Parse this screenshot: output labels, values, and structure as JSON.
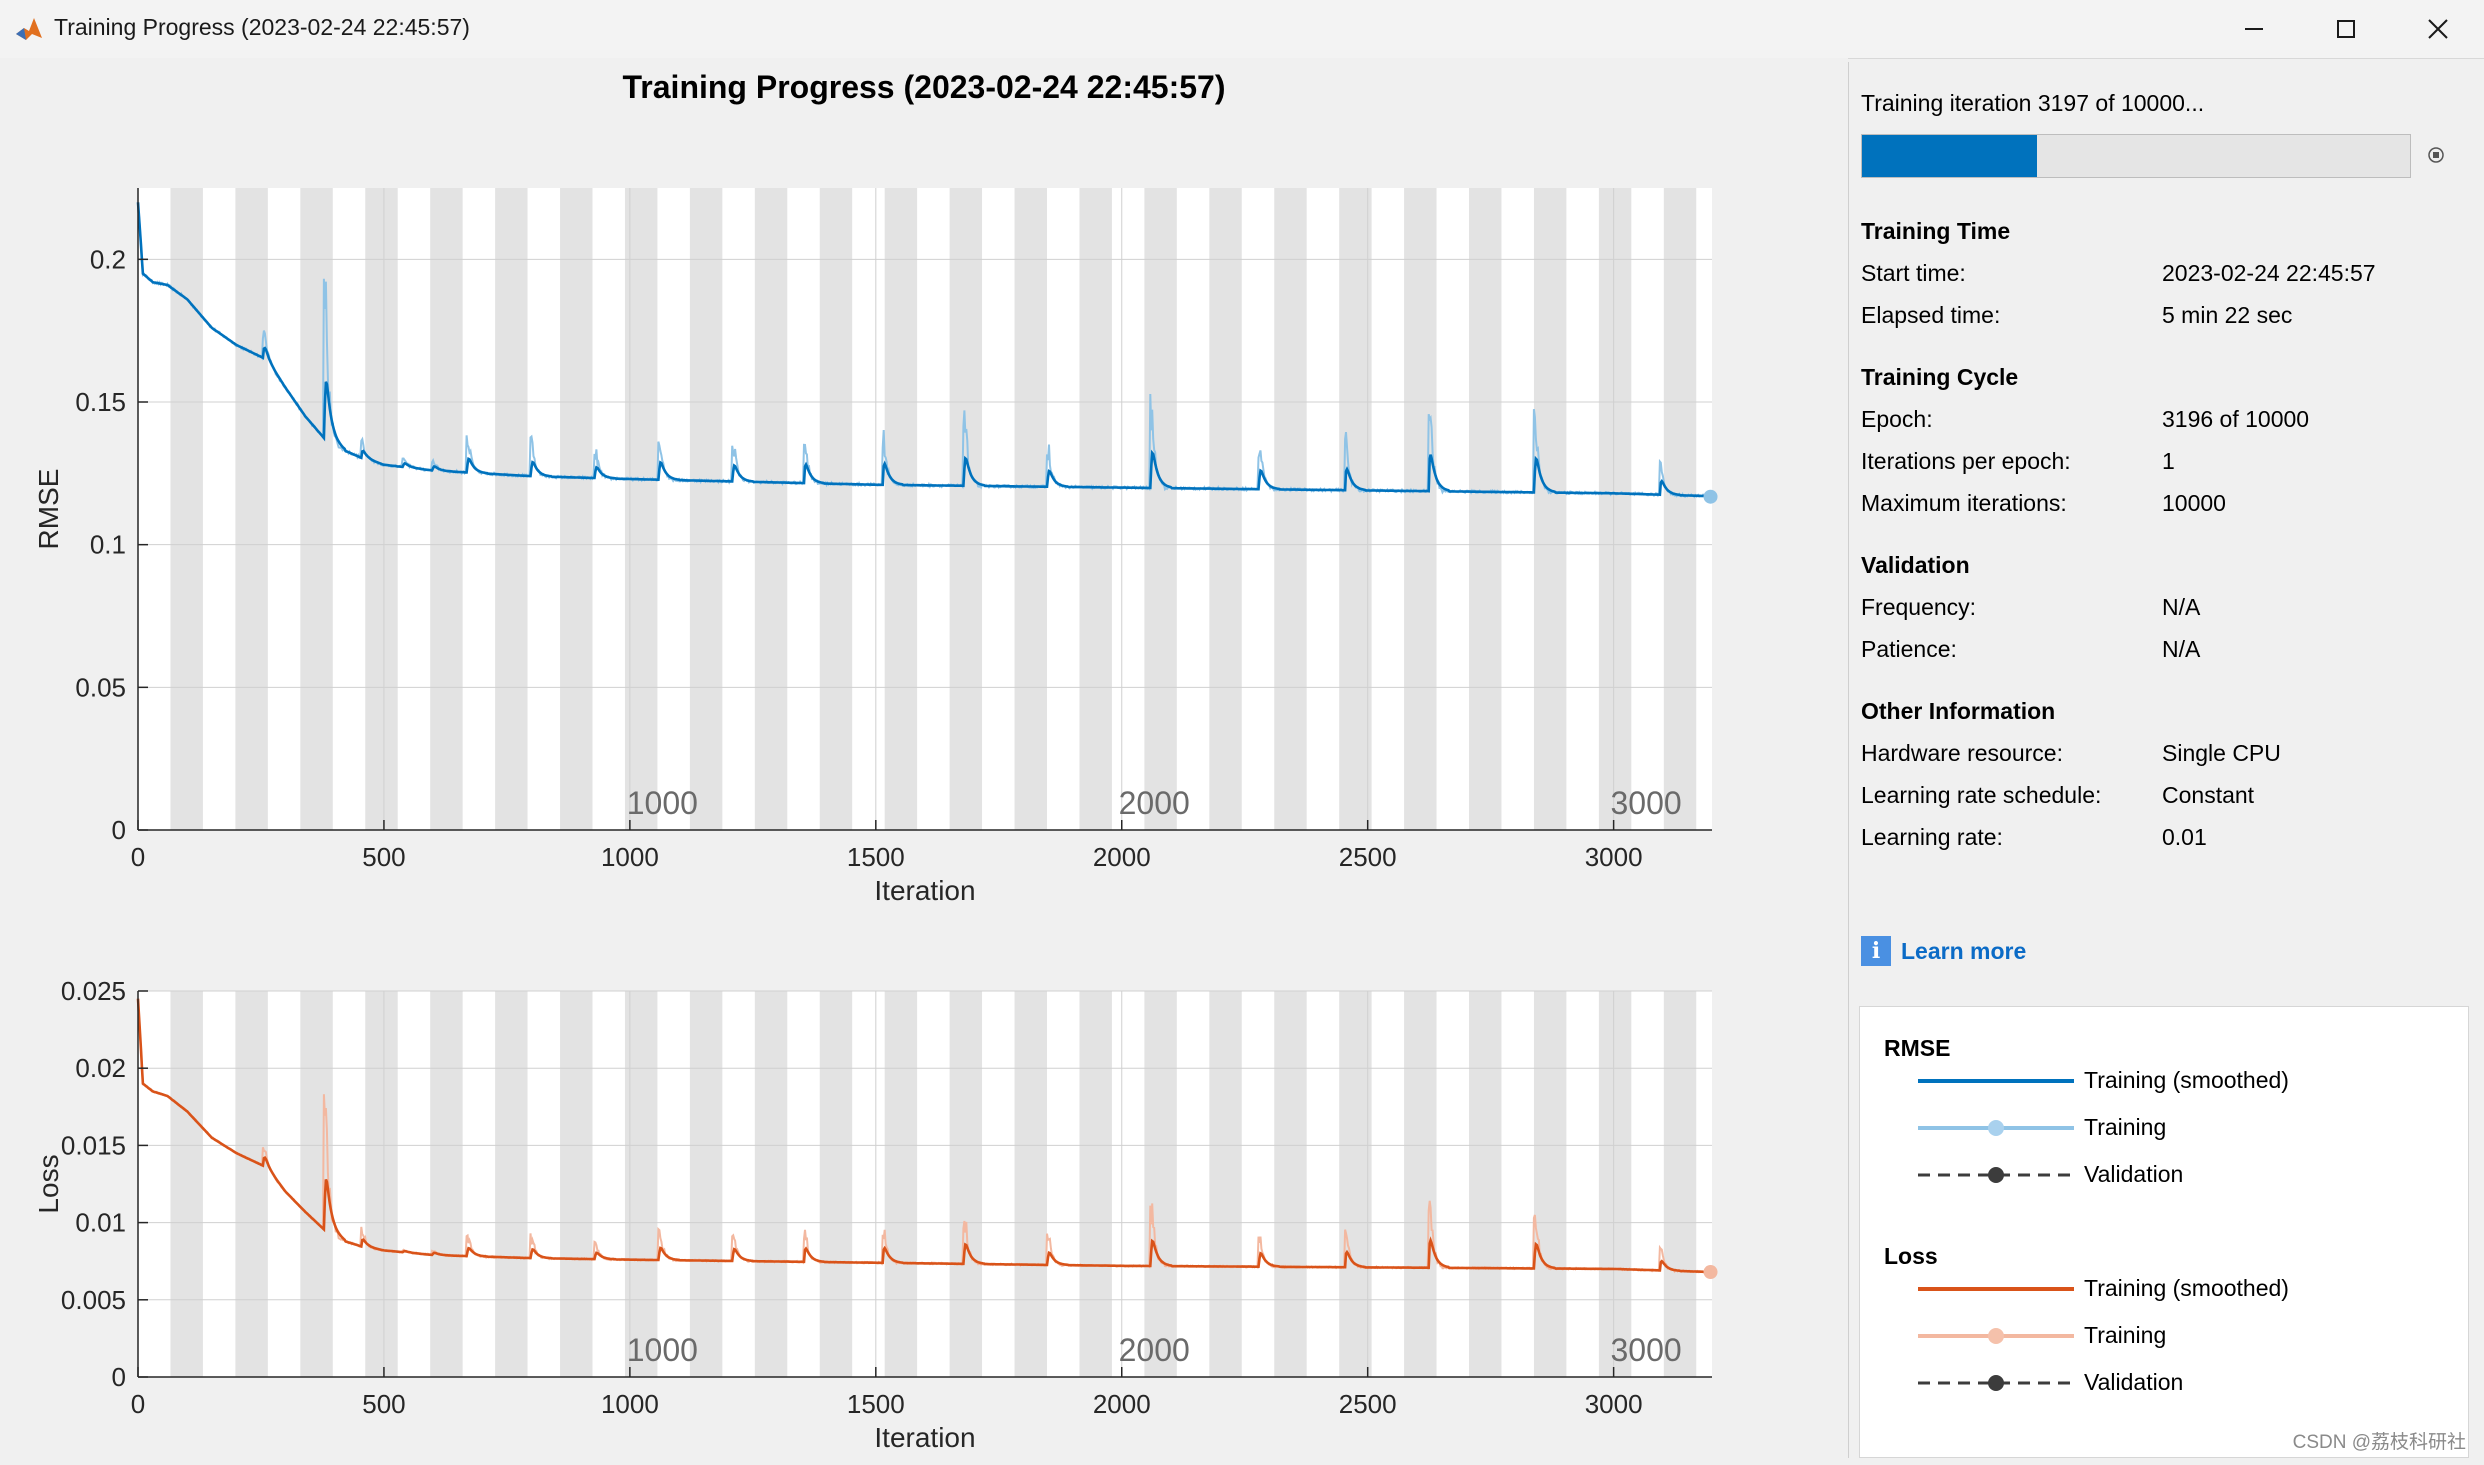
{
  "window": {
    "title": "Training Progress (2023-02-24 22:45:57)",
    "icons": [
      "matlab-icon",
      "minimize-icon",
      "maximize-icon",
      "close-icon"
    ]
  },
  "progress": {
    "status_text": "Training iteration 3197 of 10000...",
    "fraction": 0.3197
  },
  "info": {
    "training_time": {
      "heading": "Training Time",
      "rows": [
        {
          "label": "Start time:",
          "value": "2023-02-24 22:45:57"
        },
        {
          "label": "Elapsed time:",
          "value": "5 min 22 sec"
        }
      ]
    },
    "training_cycle": {
      "heading": "Training Cycle",
      "rows": [
        {
          "label": "Epoch:",
          "value": "3196 of 10000"
        },
        {
          "label": "Iterations per epoch:",
          "value": "1"
        },
        {
          "label": "Maximum iterations:",
          "value": "10000"
        }
      ]
    },
    "validation": {
      "heading": "Validation",
      "rows": [
        {
          "label": "Frequency:",
          "value": "N/A"
        },
        {
          "label": "Patience:",
          "value": "N/A"
        }
      ]
    },
    "other": {
      "heading": "Other Information",
      "rows": [
        {
          "label": "Hardware resource:",
          "value": "Single CPU"
        },
        {
          "label": "Learning rate schedule:",
          "value": "Constant"
        },
        {
          "label": "Learning rate:",
          "value": "0.01"
        }
      ]
    }
  },
  "learn_more": "Learn more",
  "legend": {
    "rmse": {
      "heading": "RMSE",
      "entries": [
        "Training (smoothed)",
        "Training",
        "Validation"
      ]
    },
    "loss": {
      "heading": "Loss",
      "entries": [
        "Training (smoothed)",
        "Training",
        "Validation"
      ]
    }
  },
  "colors": {
    "rmse_smoothed": "#0072bd",
    "rmse_raw": "#8fc3e6",
    "loss_smoothed": "#d95319",
    "loss_raw": "#f3b8a0",
    "validation": "#3c3c3c",
    "epoch_band": "#e3e3e3",
    "progress_fill": "#0072bd"
  },
  "watermark": "CSDN @荔枝科研社",
  "chart_data": [
    {
      "type": "line",
      "title": "Training Progress (2023-02-24 22:45:57)",
      "xlabel": "Iteration",
      "ylabel": "RMSE",
      "xlim": [
        0,
        3200
      ],
      "ylim": [
        0,
        0.225
      ],
      "xticks": [
        0,
        500,
        1000,
        1500,
        2000,
        2500,
        3000
      ],
      "yticks": [
        0,
        0.05,
        0.1,
        0.15,
        0.2
      ],
      "ytick_labels": [
        "0",
        "0.05",
        "0.1",
        "0.15",
        "0.2"
      ],
      "epoch_labels": [
        "1000",
        "2000",
        "3000"
      ],
      "grid": true,
      "series": [
        {
          "name": "Training (smoothed)",
          "x": [
            0,
            10,
            30,
            60,
            100,
            150,
            200,
            260,
            300,
            340,
            380,
            420,
            460,
            500,
            600,
            800,
            1000,
            1500,
            2000,
            2500,
            3000,
            3197
          ],
          "y": [
            0.22,
            0.195,
            0.192,
            0.191,
            0.186,
            0.176,
            0.17,
            0.165,
            0.155,
            0.145,
            0.137,
            0.133,
            0.13,
            0.128,
            0.126,
            0.124,
            0.123,
            0.121,
            0.12,
            0.119,
            0.118,
            0.117
          ]
        },
        {
          "name": "Training",
          "spikes_x": [
            255,
            380,
            455,
            540,
            600,
            670,
            800,
            930,
            1060,
            1210,
            1355,
            1515,
            1680,
            1850,
            2060,
            2280,
            2455,
            2625,
            2840,
            3095
          ],
          "spikes_y": [
            0.176,
            0.195,
            0.138,
            0.131,
            0.13,
            0.139,
            0.138,
            0.134,
            0.14,
            0.138,
            0.14,
            0.142,
            0.148,
            0.136,
            0.155,
            0.138,
            0.14,
            0.155,
            0.152,
            0.131
          ],
          "last": [
            3197,
            0.1168
          ]
        }
      ]
    },
    {
      "type": "line",
      "xlabel": "Iteration",
      "ylabel": "Loss",
      "xlim": [
        0,
        3200
      ],
      "ylim": [
        0,
        0.025
      ],
      "xticks": [
        0,
        500,
        1000,
        1500,
        2000,
        2500,
        3000
      ],
      "yticks": [
        0,
        0.005,
        0.01,
        0.015,
        0.02,
        0.025
      ],
      "ytick_labels": [
        "0",
        "0.005",
        "0.01",
        "0.015",
        "0.02",
        "0.025"
      ],
      "epoch_labels": [
        "1000",
        "2000",
        "3000"
      ],
      "grid": true,
      "series": [
        {
          "name": "Training (smoothed)",
          "x": [
            0,
            10,
            30,
            60,
            100,
            150,
            200,
            260,
            300,
            340,
            380,
            420,
            460,
            500,
            600,
            800,
            1000,
            1500,
            2000,
            2500,
            3000,
            3197
          ],
          "y": [
            0.0245,
            0.019,
            0.0185,
            0.0182,
            0.0172,
            0.0155,
            0.0145,
            0.0136,
            0.012,
            0.0107,
            0.0095,
            0.0088,
            0.0084,
            0.0082,
            0.0079,
            0.0077,
            0.0076,
            0.0074,
            0.0072,
            0.0071,
            0.007,
            0.0068
          ]
        },
        {
          "name": "Training",
          "spikes_x": [
            255,
            380,
            455,
            540,
            600,
            670,
            800,
            930,
            1060,
            1210,
            1355,
            1515,
            1680,
            1850,
            2060,
            2280,
            2455,
            2625,
            2840,
            3095
          ],
          "spikes_y": [
            0.0153,
            0.019,
            0.0098,
            0.0083,
            0.0083,
            0.0093,
            0.0093,
            0.0088,
            0.0098,
            0.0097,
            0.0099,
            0.0101,
            0.0109,
            0.0095,
            0.0118,
            0.0096,
            0.0099,
            0.0121,
            0.0115,
            0.0086
          ],
          "last": [
            3197,
            0.0068
          ]
        }
      ]
    }
  ]
}
